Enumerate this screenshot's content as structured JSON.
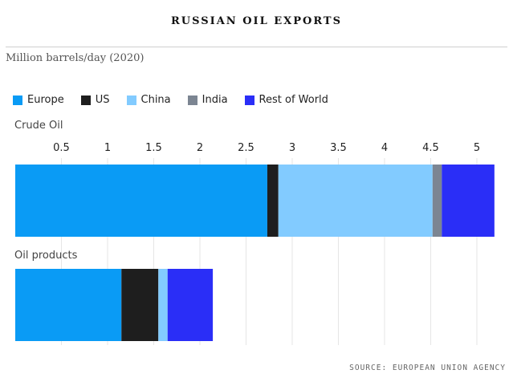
{
  "header": {
    "title": "RUSSIAN OIL EXPORTS",
    "subtitle": "Million barrels/day (2020)"
  },
  "legend": [
    {
      "name": "Europe",
      "color": "#0a9bf5"
    },
    {
      "name": "US",
      "color": "#1e1e1e"
    },
    {
      "name": "China",
      "color": "#82cbff"
    },
    {
      "name": "India",
      "color": "#7c8592"
    },
    {
      "name": "Rest of World",
      "color": "#2a2ef7"
    }
  ],
  "footer": {
    "source": "SOURCE: EUROPEAN UNION AGENCY"
  },
  "chart_data": {
    "type": "bar",
    "orientation": "horizontal",
    "stacked": true,
    "categories": [
      "Crude Oil",
      "Oil products"
    ],
    "series": [
      {
        "name": "Europe",
        "values": [
          2.73,
          1.15
        ]
      },
      {
        "name": "US",
        "values": [
          0.12,
          0.4
        ]
      },
      {
        "name": "China",
        "values": [
          1.67,
          0.1
        ]
      },
      {
        "name": "India",
        "values": [
          0.1,
          0.0
        ]
      },
      {
        "name": "Rest of World",
        "values": [
          0.57,
          0.49
        ]
      }
    ],
    "xticks": [
      "0.5",
      "1",
      "1.5",
      "2",
      "2.5",
      "3",
      "3.5",
      "4",
      "4.5",
      "5"
    ],
    "xlim": [
      0,
      5.2
    ],
    "grid": true,
    "legend_position": "top-left"
  }
}
